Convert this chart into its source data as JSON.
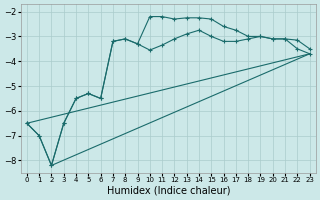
{
  "xlabel": "Humidex (Indice chaleur)",
  "background_color": "#cce8e8",
  "grid_color": "#aacccc",
  "line_color": "#1a6b6b",
  "xlim": [
    -0.5,
    23.5
  ],
  "ylim": [
    -8.5,
    -1.7
  ],
  "yticks": [
    -8,
    -7,
    -6,
    -5,
    -4,
    -3,
    -2
  ],
  "xticks": [
    0,
    1,
    2,
    3,
    4,
    5,
    6,
    7,
    8,
    9,
    10,
    11,
    12,
    13,
    14,
    15,
    16,
    17,
    18,
    19,
    20,
    21,
    22,
    23
  ],
  "curve1_x": [
    0,
    1,
    2,
    3,
    4,
    5,
    6,
    7,
    8,
    9,
    10,
    11,
    12,
    13,
    14,
    15,
    16,
    17,
    18,
    19,
    20,
    21,
    22,
    23
  ],
  "curve1_y": [
    -6.5,
    -7.0,
    -8.2,
    -6.5,
    -5.5,
    -5.3,
    -5.5,
    -3.2,
    -3.1,
    -3.3,
    -2.2,
    -2.2,
    -2.3,
    -2.25,
    -2.25,
    -2.3,
    -2.6,
    -2.75,
    -3.0,
    -3.0,
    -3.1,
    -3.1,
    -3.5,
    -3.7
  ],
  "curve2_x": [
    0,
    1,
    2,
    3,
    4,
    5,
    6,
    7,
    8,
    9,
    10,
    11,
    12,
    13,
    14,
    15,
    16,
    17,
    18,
    19,
    20,
    21,
    22,
    23
  ],
  "curve2_y": [
    -6.5,
    -7.0,
    -8.2,
    -6.5,
    -5.5,
    -5.3,
    -5.5,
    -3.2,
    -3.1,
    -3.3,
    -3.55,
    -3.35,
    -3.1,
    -2.9,
    -2.75,
    -3.0,
    -3.2,
    -3.2,
    -3.1,
    -3.0,
    -3.1,
    -3.1,
    -3.15,
    -3.5
  ],
  "curve3_x": [
    0,
    23
  ],
  "curve3_y": [
    -6.5,
    -3.7
  ],
  "curve4_x": [
    2,
    23
  ],
  "curve4_y": [
    -8.2,
    -3.7
  ]
}
